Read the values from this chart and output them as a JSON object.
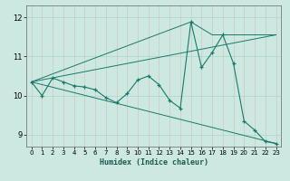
{
  "title": "",
  "xlabel": "Humidex (Indice chaleur)",
  "xlim": [
    -0.5,
    23.5
  ],
  "ylim": [
    8.7,
    12.3
  ],
  "yticks": [
    9,
    10,
    11,
    12
  ],
  "xticks": [
    0,
    1,
    2,
    3,
    4,
    5,
    6,
    7,
    8,
    9,
    10,
    11,
    12,
    13,
    14,
    15,
    16,
    17,
    18,
    19,
    20,
    21,
    22,
    23
  ],
  "bg_color": "#cce8e0",
  "line_color": "#1a7a6a",
  "grid_color": "#aad4cc",
  "data_x": [
    0,
    1,
    2,
    3,
    4,
    5,
    6,
    7,
    8,
    9,
    10,
    11,
    12,
    13,
    14,
    15,
    16,
    17,
    18,
    19,
    20,
    21,
    22,
    23
  ],
  "data_y": [
    10.35,
    10.0,
    10.45,
    10.35,
    10.25,
    10.22,
    10.15,
    9.95,
    9.82,
    10.05,
    10.4,
    10.5,
    10.28,
    9.88,
    9.68,
    11.88,
    10.72,
    11.1,
    11.55,
    10.82,
    9.35,
    9.12,
    8.83,
    8.78
  ],
  "upper_line_x": [
    0,
    23
  ],
  "upper_line_y": [
    10.35,
    11.55
  ],
  "lower_line_x": [
    0,
    23
  ],
  "lower_line_y": [
    10.35,
    8.78
  ],
  "peak_line_x": [
    0,
    15,
    17,
    23
  ],
  "peak_line_y": [
    10.35,
    11.88,
    11.55,
    11.55
  ]
}
